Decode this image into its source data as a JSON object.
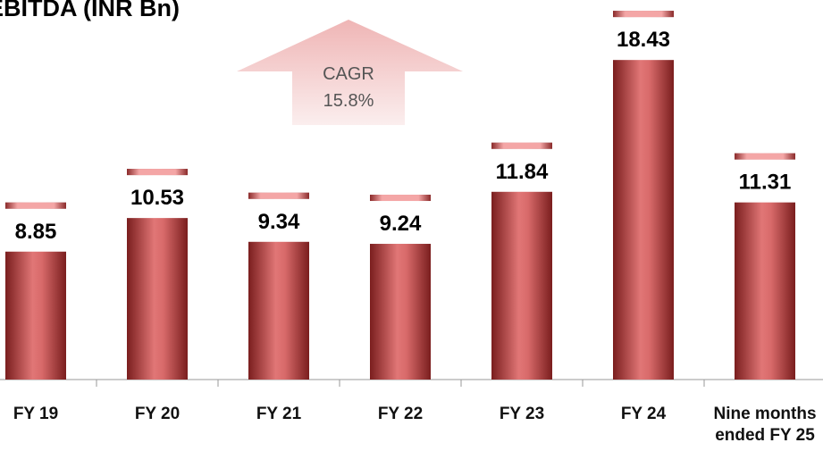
{
  "chart_data": {
    "type": "bar",
    "title": "EBITDA (INR Bn)",
    "categories": [
      "FY 19",
      "FY 20",
      "FY 21",
      "FY 22",
      "FY 23",
      "FY 24",
      "Nine months ended FY 25"
    ],
    "values": [
      8.85,
      10.53,
      9.34,
      9.24,
      11.84,
      18.43,
      11.31
    ],
    "color": "#c84a4a",
    "annotation": {
      "label": "CAGR",
      "value": "15.8%"
    }
  }
}
